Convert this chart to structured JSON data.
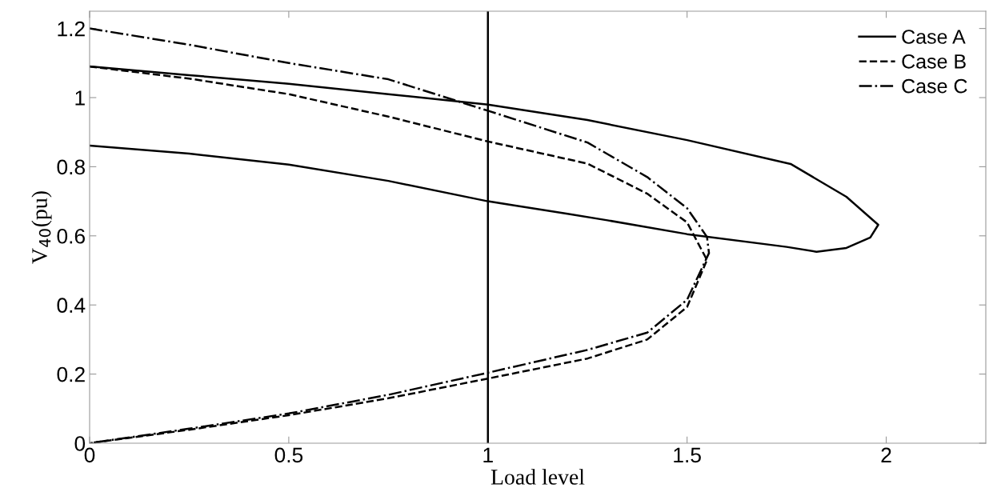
{
  "chart_data": {
    "type": "line",
    "xlabel": "Load level",
    "ylabel": "V$_{40}$(pu)",
    "xlim": [
      0,
      2.25
    ],
    "ylim": [
      0,
      1.25
    ],
    "xticks": [
      0,
      0.5,
      1,
      1.5,
      2
    ],
    "yticks": [
      0,
      0.2,
      0.4,
      0.6,
      0.8,
      1,
      1.2
    ],
    "grid": false,
    "legend": "top right",
    "ref_lines": [
      {
        "axis": "x",
        "value": 1,
        "color": "#000000",
        "line_style": "solid"
      }
    ],
    "series": [
      {
        "name": "Case A",
        "color": "#000000",
        "line_style": "solid",
        "x": [
          0,
          0.25,
          0.5,
          0.75,
          1,
          1.25,
          1.5,
          1.76,
          1.9,
          1.98,
          1.96,
          1.9,
          1.825,
          1.75,
          1.5,
          1.3,
          1.2,
          1,
          0.75,
          0.5,
          0.25,
          0
        ],
        "values": [
          1.09,
          1.065,
          1.04,
          1.01,
          0.98,
          0.935,
          0.877,
          0.808,
          0.713,
          0.632,
          0.595,
          0.565,
          0.554,
          0.568,
          0.605,
          0.645,
          0.664,
          0.7,
          0.759,
          0.806,
          0.838,
          0.861
        ]
      },
      {
        "name": "Case B",
        "color": "#000000",
        "line_style": "dashed",
        "x": [
          0,
          0.25,
          0.5,
          0.75,
          1,
          1.25,
          1.4,
          1.5,
          1.55,
          1.5,
          1.4,
          1.25,
          1,
          0.75,
          0.5,
          0.25,
          0
        ],
        "values": [
          1.09,
          1.055,
          1.01,
          0.945,
          0.873,
          0.809,
          0.722,
          0.639,
          0.53,
          0.394,
          0.3,
          0.245,
          0.187,
          0.13,
          0.081,
          0.039,
          0
        ]
      },
      {
        "name": "Case C",
        "color": "#000000",
        "line_style": "dashdot",
        "x": [
          0,
          0.25,
          0.5,
          0.75,
          1,
          1.25,
          1.4,
          1.5,
          1.55,
          1.555,
          1.5,
          1.4,
          1.25,
          1,
          0.75,
          0.5,
          0.25,
          0
        ],
        "values": [
          1.2,
          1.153,
          1.1,
          1.053,
          0.962,
          0.87,
          0.77,
          0.68,
          0.597,
          0.55,
          0.415,
          0.32,
          0.27,
          0.204,
          0.14,
          0.086,
          0.042,
          0
        ]
      }
    ]
  }
}
